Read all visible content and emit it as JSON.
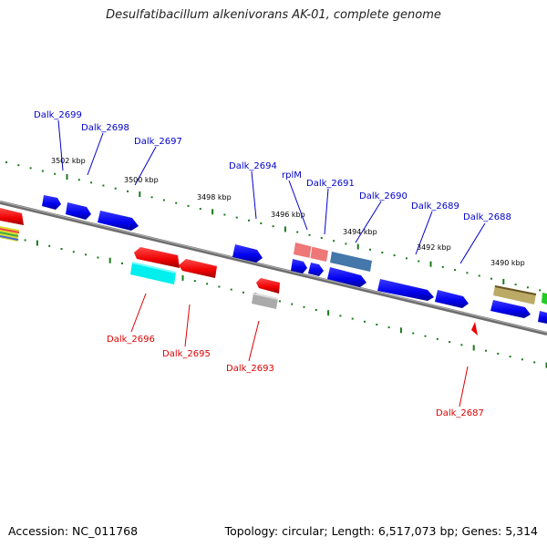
{
  "title": "Desulfatibacillum alkenivorans AK-01, complete genome",
  "footer": {
    "accession": "Accession: NC_011768",
    "topology": "Topology: circular; Length: 6,517,073 bp; Genes: 5,314"
  },
  "colors": {
    "backbone": "#777777",
    "forward_gene": "#0000ee",
    "reverse_gene": "#ee0000",
    "top_label": "#0000cc",
    "bottom_label": "#dd0000",
    "tick": "#1a7a1a",
    "rRNA_like": "#ee7777",
    "steelblue_gene": "#4477aa",
    "cyan_gene": "#00eeee",
    "gray_gene": "#aaaaaa",
    "olive_gene": "#bbaa66",
    "green_gene": "#22cc22"
  },
  "scale_labels": [
    "3502 kbp",
    "3500 kbp",
    "3498 kbp",
    "3496 kbp",
    "3494 kbp",
    "3492 kbp",
    "3490 kbp"
  ],
  "top_genes": [
    "Dalk_2699",
    "Dalk_2698",
    "Dalk_2697",
    "Dalk_2694",
    "rplM",
    "Dalk_2691",
    "Dalk_2690",
    "Dalk_2689",
    "Dalk_2688"
  ],
  "bottom_genes": [
    "Dalk_2696",
    "Dalk_2695",
    "Dalk_2693",
    "Dalk_2687"
  ]
}
